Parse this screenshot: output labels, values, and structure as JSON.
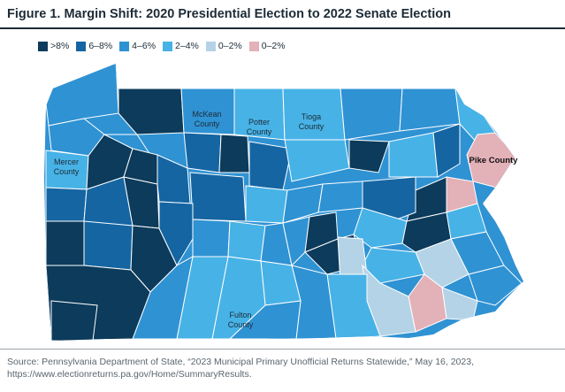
{
  "figure": {
    "title": "Figure 1. Margin Shift: 2020 Presidential Election to 2022 Senate Election",
    "source": "Source: Pennsylvania Department of State, “2023 Municipal Primary Unofficial Returns Statewide,” May 16, 2023, https://www.electionreturns.pa.gov/Home/SummaryResults."
  },
  "legend": [
    {
      "label": ">8%",
      "color": "#0c3b5b"
    },
    {
      "label": "6–8%",
      "color": "#1565a2"
    },
    {
      "label": "4–6%",
      "color": "#2f92d3"
    },
    {
      "label": "2–4%",
      "color": "#47b2e6"
    },
    {
      "label": "0–2%",
      "color": "#b4d3e6"
    },
    {
      "label": "0–2%",
      "color": "#e3b1b8"
    }
  ],
  "county_labels": {
    "mckean": [
      "McKean",
      "County"
    ],
    "potter": [
      "Potter",
      "County"
    ],
    "tioga": [
      "Tioga",
      "County"
    ],
    "mercer": [
      "Mercer",
      "County"
    ],
    "pike": "Pike County",
    "fulton": [
      "Fulton",
      "County"
    ]
  }
}
